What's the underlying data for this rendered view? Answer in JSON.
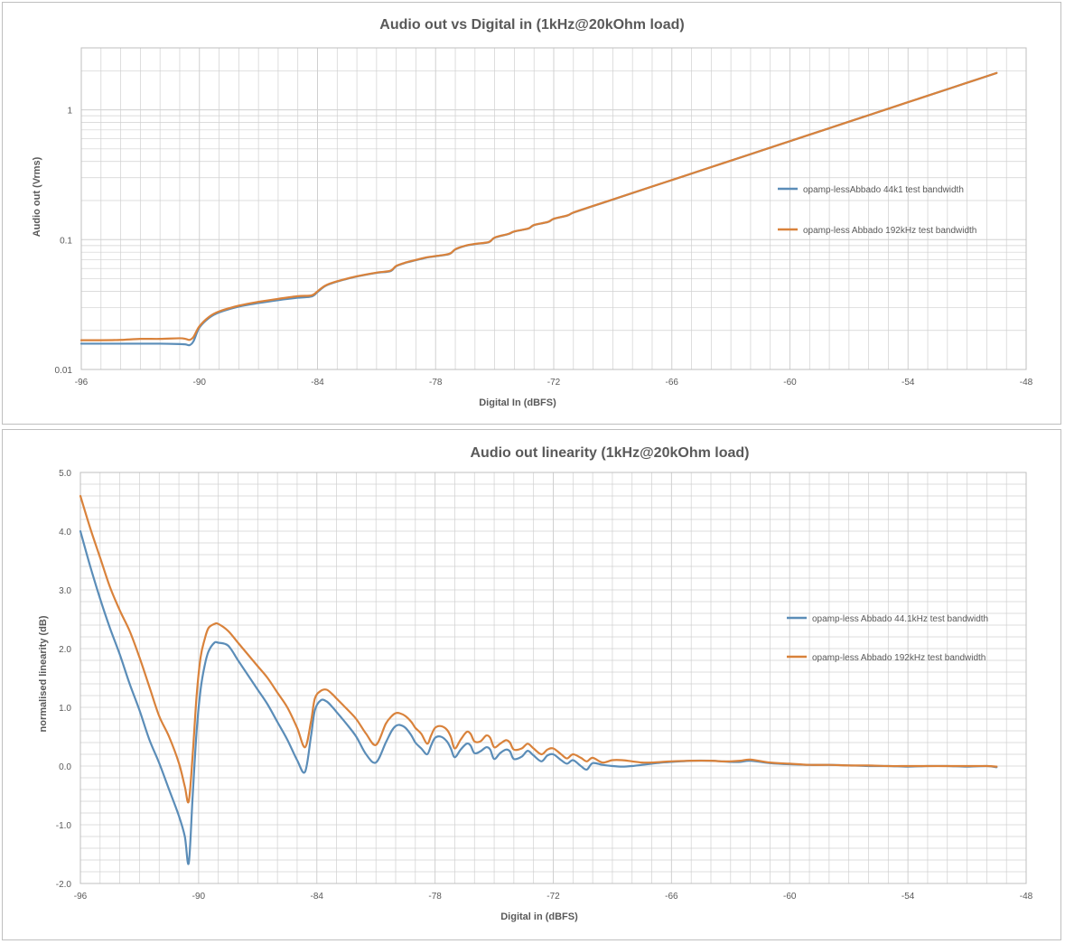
{
  "colors": {
    "blue": "#5b8db8",
    "orange": "#d9823b",
    "grid": "#d0d0d0",
    "text": "#595959"
  },
  "chart_data": [
    {
      "type": "line",
      "title": "Audio out vs Digital in (1kHz@20kOhm load)",
      "xlabel": "Digital In (dBFS)",
      "ylabel": "Audio out (Vrms)",
      "xlim": [
        -96,
        -48
      ],
      "ylim": [
        0.01,
        3
      ],
      "yscale": "log",
      "grid": true,
      "legend_position": "right",
      "x_ticks": [
        -96,
        -90,
        -84,
        -78,
        -72,
        -66,
        -60,
        -54,
        -48
      ],
      "x_tick_labels": [
        "-96",
        "-90",
        "-84",
        "-78",
        "-72",
        "-66",
        "-60",
        "-54",
        "-48"
      ],
      "y_ticks": [
        0.01,
        0.1,
        1
      ],
      "y_tick_labels": [
        "0.01",
        "0.1",
        "1"
      ],
      "series": [
        {
          "name": "opamp-lessAbbado 44k1 test bandwidth",
          "color": "#5b8db8",
          "x": [
            -96,
            -95,
            -94,
            -93,
            -92,
            -91,
            -90.7,
            -90.5,
            -90.3,
            -90,
            -89.5,
            -89,
            -88,
            -87,
            -86,
            -85,
            -84.3,
            -84,
            -83.6,
            -83,
            -82,
            -81,
            -80.3,
            -80,
            -79.5,
            -79,
            -78.5,
            -78,
            -77.3,
            -77,
            -76.5,
            -76,
            -75.3,
            -75,
            -74.3,
            -74,
            -73.3,
            -73,
            -72.3,
            -72,
            -71.3,
            -71,
            -70,
            -69,
            -68,
            -67,
            -66,
            -65,
            -64,
            -63,
            -62,
            -61,
            -60,
            -59,
            -58,
            -57,
            -56,
            -55,
            -54,
            -53,
            -52,
            -51,
            -50,
            -49.5
          ],
          "values": [
            0.0158,
            0.0158,
            0.0158,
            0.0158,
            0.0158,
            0.0157,
            0.0156,
            0.0154,
            0.0165,
            0.021,
            0.025,
            0.0275,
            0.0305,
            0.0325,
            0.0342,
            0.0357,
            0.0365,
            0.0395,
            0.044,
            0.0475,
            0.052,
            0.0555,
            0.0572,
            0.0625,
            0.0665,
            0.0695,
            0.0725,
            0.0745,
            0.0775,
            0.084,
            0.0895,
            0.0925,
            0.0955,
            0.1035,
            0.1105,
            0.1155,
            0.1215,
            0.1295,
            0.1365,
            0.1445,
            0.1535,
            0.1615,
            0.1815,
            0.2035,
            0.2285,
            0.2565,
            0.2875,
            0.3225,
            0.362,
            0.406,
            0.4555,
            0.511,
            0.5735,
            0.6435,
            0.722,
            0.81,
            0.909,
            1.02,
            1.145,
            1.284,
            1.441,
            1.617,
            1.814,
            1.922
          ]
        },
        {
          "name": "opamp-less Abbado 192kHz test bandwidth",
          "color": "#d9823b",
          "x": [
            -96,
            -95,
            -94,
            -93,
            -92,
            -91,
            -90.7,
            -90.5,
            -90.3,
            -90,
            -89.5,
            -89,
            -88,
            -87,
            -86,
            -85,
            -84.3,
            -84,
            -83.6,
            -83,
            -82,
            -81,
            -80.3,
            -80,
            -79.5,
            -79,
            -78.5,
            -78,
            -77.3,
            -77,
            -76.5,
            -76,
            -75.3,
            -75,
            -74.3,
            -74,
            -73.3,
            -73,
            -72.3,
            -72,
            -71.3,
            -71,
            -70,
            -69,
            -68,
            -67,
            -66,
            -65,
            -64,
            -63,
            -62,
            -61,
            -60,
            -59,
            -58,
            -57,
            -56,
            -55,
            -54,
            -53,
            -52,
            -51,
            -50,
            -49.5
          ],
          "values": [
            0.0168,
            0.0168,
            0.0169,
            0.0172,
            0.0172,
            0.0174,
            0.0172,
            0.0169,
            0.0178,
            0.0215,
            0.0255,
            0.028,
            0.031,
            0.0332,
            0.035,
            0.0367,
            0.0372,
            0.04,
            0.0443,
            0.0478,
            0.0522,
            0.0557,
            0.0576,
            0.0628,
            0.0668,
            0.0698,
            0.0728,
            0.0748,
            0.0778,
            0.0843,
            0.0898,
            0.0928,
            0.0958,
            0.1038,
            0.1108,
            0.1158,
            0.1218,
            0.1298,
            0.1368,
            0.1448,
            0.1538,
            0.1618,
            0.1818,
            0.2038,
            0.2288,
            0.2568,
            0.2878,
            0.3228,
            0.3623,
            0.4063,
            0.4558,
            0.5113,
            0.5738,
            0.6438,
            0.7223,
            0.8103,
            0.9093,
            1.0203,
            1.1453,
            1.2843,
            1.4413,
            1.6173,
            1.8143,
            1.9223
          ]
        }
      ]
    },
    {
      "type": "line",
      "title": "Audio out  linearity (1kHz@20kOhm load)",
      "xlabel": "Digital in (dBFS)",
      "ylabel": "normalised linearity (dB)",
      "xlim": [
        -96,
        -48
      ],
      "ylim": [
        -2.0,
        5.0
      ],
      "grid": true,
      "legend_position": "right",
      "x_ticks": [
        -96,
        -90,
        -84,
        -78,
        -72,
        -66,
        -60,
        -54,
        -48
      ],
      "x_tick_labels": [
        "-96",
        "-90",
        "-84",
        "-78",
        "-72",
        "-66",
        "-60",
        "-54",
        "-48"
      ],
      "y_ticks": [
        -2,
        -1,
        0,
        1,
        2,
        3,
        4,
        5
      ],
      "y_tick_labels": [
        "-2.0",
        "-1.0",
        "0.0",
        "1.0",
        "2.0",
        "3.0",
        "4.0",
        "5.0"
      ],
      "series": [
        {
          "name": "opamp-less Abbado 44.1kHz test bandwidth",
          "color": "#5b8db8",
          "x": [
            -96,
            -95.5,
            -95,
            -94.5,
            -94,
            -93.5,
            -93,
            -92.5,
            -92,
            -91.5,
            -91,
            -90.7,
            -90.5,
            -90.3,
            -90.1,
            -89.9,
            -89.7,
            -89.5,
            -89.2,
            -89,
            -88.5,
            -88,
            -87.5,
            -87,
            -86.5,
            -86,
            -85.5,
            -85,
            -84.6,
            -84.3,
            -84.1,
            -83.8,
            -83.5,
            -83.2,
            -83,
            -82.5,
            -82,
            -81.5,
            -81,
            -80.5,
            -80.2,
            -80,
            -79.8,
            -79.5,
            -79.2,
            -79,
            -78.7,
            -78.4,
            -78.2,
            -78,
            -77.7,
            -77.4,
            -77.2,
            -77,
            -76.7,
            -76.4,
            -76.2,
            -76,
            -75.7,
            -75.4,
            -75.2,
            -75,
            -74.7,
            -74.4,
            -74.2,
            -74,
            -73.6,
            -73.3,
            -73,
            -72.6,
            -72.3,
            -72,
            -71.6,
            -71.3,
            -71,
            -70.6,
            -70.3,
            -70,
            -69.5,
            -69,
            -68.5,
            -68,
            -67.5,
            -67,
            -66.5,
            -66,
            -65,
            -64,
            -63.5,
            -63,
            -62.5,
            -62,
            -61,
            -60,
            -59,
            -58,
            -57,
            -56,
            -55,
            -54,
            -53,
            -52,
            -51,
            -50,
            -49.5
          ],
          "values": [
            4.0,
            3.4,
            2.85,
            2.35,
            1.9,
            1.4,
            0.95,
            0.45,
            0.05,
            -0.4,
            -0.85,
            -1.2,
            -1.65,
            -0.5,
            0.6,
            1.3,
            1.7,
            1.95,
            2.1,
            2.1,
            2.05,
            1.8,
            1.55,
            1.3,
            1.05,
            0.75,
            0.45,
            0.1,
            -0.1,
            0.5,
            0.95,
            1.12,
            1.1,
            1.0,
            0.92,
            0.72,
            0.5,
            0.2,
            0.06,
            0.4,
            0.6,
            0.68,
            0.7,
            0.65,
            0.52,
            0.4,
            0.3,
            0.2,
            0.35,
            0.48,
            0.5,
            0.42,
            0.3,
            0.15,
            0.28,
            0.38,
            0.35,
            0.22,
            0.25,
            0.32,
            0.28,
            0.12,
            0.22,
            0.28,
            0.25,
            0.12,
            0.16,
            0.26,
            0.18,
            0.08,
            0.18,
            0.2,
            0.1,
            0.04,
            0.1,
            0.0,
            -0.06,
            0.05,
            0.02,
            0.0,
            -0.01,
            0.0,
            0.02,
            0.04,
            0.06,
            0.07,
            0.09,
            0.09,
            0.08,
            0.07,
            0.07,
            0.09,
            0.05,
            0.03,
            0.02,
            0.02,
            0.01,
            0.0,
            0.0,
            -0.01,
            0.0,
            0.0,
            -0.01,
            0.0,
            -0.02
          ]
        },
        {
          "name": "opamp-less Abbado 192kHz test bandwidth",
          "color": "#d9823b",
          "x": [
            -96,
            -95.5,
            -95,
            -94.5,
            -94,
            -93.5,
            -93,
            -92.5,
            -92,
            -91.5,
            -91,
            -90.7,
            -90.5,
            -90.3,
            -90.1,
            -89.9,
            -89.7,
            -89.5,
            -89.2,
            -89,
            -88.5,
            -88,
            -87.5,
            -87,
            -86.5,
            -86,
            -85.5,
            -85,
            -84.6,
            -84.3,
            -84.1,
            -83.8,
            -83.5,
            -83.2,
            -83,
            -82.5,
            -82,
            -81.5,
            -81,
            -80.5,
            -80.2,
            -80,
            -79.8,
            -79.5,
            -79.2,
            -79,
            -78.7,
            -78.4,
            -78.2,
            -78,
            -77.7,
            -77.4,
            -77.2,
            -77,
            -76.7,
            -76.4,
            -76.2,
            -76,
            -75.7,
            -75.4,
            -75.2,
            -75,
            -74.7,
            -74.4,
            -74.2,
            -74,
            -73.6,
            -73.3,
            -73,
            -72.6,
            -72.3,
            -72,
            -71.6,
            -71.3,
            -71,
            -70.6,
            -70.3,
            -70,
            -69.5,
            -69,
            -68.5,
            -68,
            -67.5,
            -67,
            -66.5,
            -66,
            -65,
            -64,
            -63.5,
            -63,
            -62.5,
            -62,
            -61,
            -60,
            -59,
            -58,
            -57,
            -56,
            -55,
            -54,
            -53,
            -52,
            -51,
            -50,
            -49.5
          ],
          "values": [
            4.6,
            4.05,
            3.55,
            3.05,
            2.65,
            2.3,
            1.85,
            1.35,
            0.85,
            0.5,
            0.05,
            -0.35,
            -0.6,
            0.2,
            1.2,
            1.85,
            2.15,
            2.35,
            2.42,
            2.42,
            2.3,
            2.1,
            1.9,
            1.7,
            1.5,
            1.25,
            1.0,
            0.65,
            0.32,
            0.75,
            1.15,
            1.28,
            1.3,
            1.22,
            1.15,
            0.98,
            0.8,
            0.55,
            0.36,
            0.72,
            0.85,
            0.9,
            0.9,
            0.85,
            0.75,
            0.65,
            0.55,
            0.38,
            0.52,
            0.65,
            0.68,
            0.62,
            0.5,
            0.3,
            0.45,
            0.58,
            0.55,
            0.42,
            0.42,
            0.52,
            0.48,
            0.32,
            0.38,
            0.44,
            0.4,
            0.28,
            0.3,
            0.38,
            0.3,
            0.2,
            0.28,
            0.3,
            0.2,
            0.13,
            0.2,
            0.14,
            0.08,
            0.14,
            0.06,
            0.1,
            0.1,
            0.08,
            0.06,
            0.06,
            0.07,
            0.08,
            0.09,
            0.09,
            0.08,
            0.08,
            0.09,
            0.11,
            0.06,
            0.04,
            0.02,
            0.02,
            0.01,
            0.01,
            0.0,
            0.0,
            0.0,
            0.0,
            0.0,
            0.0,
            -0.01
          ]
        }
      ]
    }
  ]
}
